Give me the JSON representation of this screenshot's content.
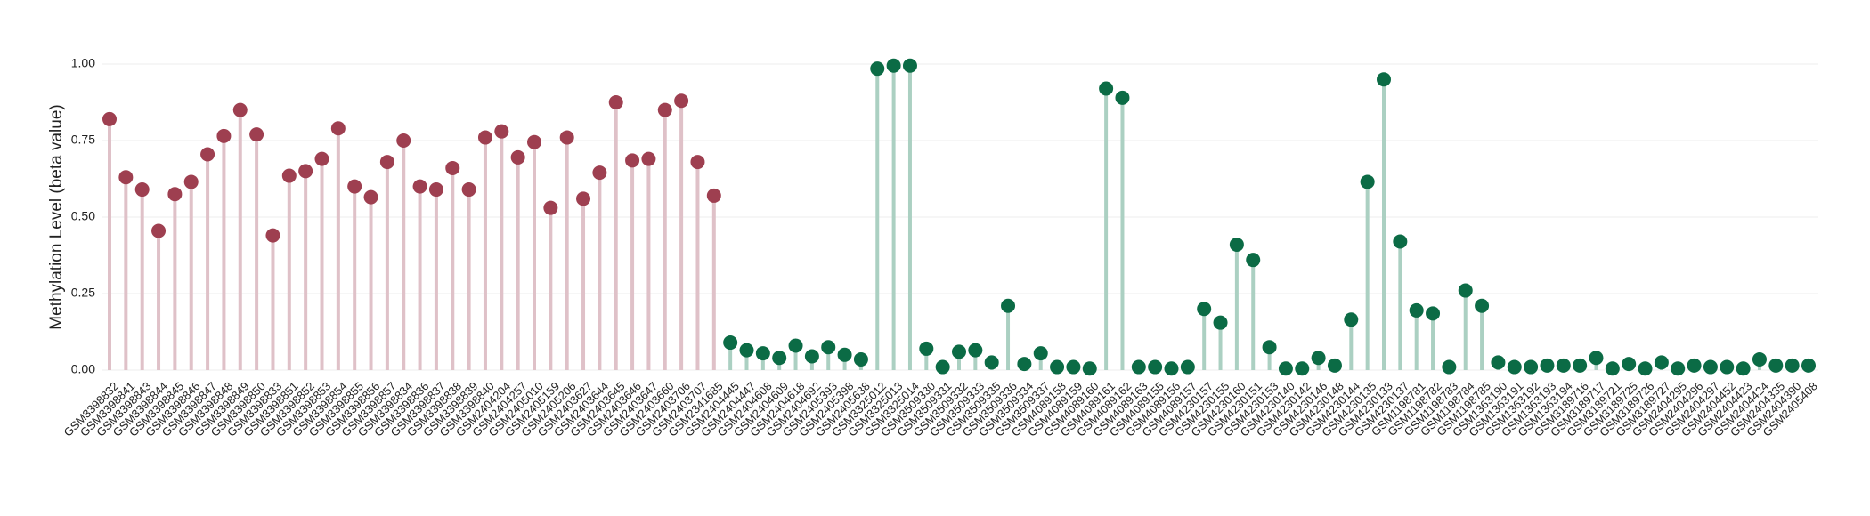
{
  "chart_data": {
    "type": "lollipop",
    "y_label": "Methylation Level (beta value)",
    "categories": [
      "GSM3398832",
      "GSM3398841",
      "GSM3398843",
      "GSM3398844",
      "GSM3398845",
      "GSM3398846",
      "GSM3398847",
      "GSM3398848",
      "GSM3398849",
      "GSM3398850",
      "GSM3398833",
      "GSM3398851",
      "GSM3398852",
      "GSM3398853",
      "GSM3398854",
      "GSM3398855",
      "GSM3398856",
      "GSM3398857",
      "GSM3398834",
      "GSM3398836",
      "GSM3398837",
      "GSM3398838",
      "GSM3398839",
      "GSM3398840",
      "GSM2404204",
      "GSM2404257",
      "GSM2405010",
      "GSM2405159",
      "GSM2405206",
      "GSM2403627",
      "GSM2403644",
      "GSM2403645",
      "GSM2403646",
      "GSM2403647",
      "GSM2403660",
      "GSM2403706",
      "GSM2403707",
      "GSM2341685",
      "GSM2404445",
      "GSM2404447",
      "GSM2404608",
      "GSM2404609",
      "GSM2404618",
      "GSM2404692",
      "GSM2405393",
      "GSM2405398",
      "GSM2405638",
      "GSM3325012",
      "GSM3325013",
      "GSM3325014",
      "GSM3509330",
      "GSM3509331",
      "GSM3509332",
      "GSM3509333",
      "GSM3509335",
      "GSM3509336",
      "GSM3509334",
      "GSM3509337",
      "GSM4089158",
      "GSM4089159",
      "GSM4089160",
      "GSM4089161",
      "GSM4089162",
      "GSM4089163",
      "GSM4089155",
      "GSM4089156",
      "GSM4089157",
      "GSM4230157",
      "GSM4230155",
      "GSM4230160",
      "GSM4230151",
      "GSM4230153",
      "GSM4230140",
      "GSM4230142",
      "GSM4230146",
      "GSM4230148",
      "GSM4230144",
      "GSM4230135",
      "GSM4230133",
      "GSM4230137",
      "GSM1198781",
      "GSM1198782",
      "GSM1198783",
      "GSM1198784",
      "GSM1198785",
      "GSM1363190",
      "GSM1363191",
      "GSM1363192",
      "GSM1363193",
      "GSM1363194",
      "GSM3189716",
      "GSM3189717",
      "GSM3189721",
      "GSM3189725",
      "GSM3189726",
      "GSM3189727",
      "GSM2404295",
      "GSM2404296",
      "GSM2404297",
      "GSM2404452",
      "GSM2404423",
      "GSM2404424",
      "GSM2404335",
      "GSM2404390",
      "GSM2405408"
    ],
    "series": [
      {
        "color": "#9e3f50",
        "stem_color": "#dfc1c8",
        "values": [
          0.82,
          0.63,
          0.59,
          0.455,
          0.575,
          0.615,
          0.705,
          0.765,
          0.85,
          0.77,
          0.44,
          0.635,
          0.65,
          0.69,
          0.79,
          0.6,
          0.565,
          0.68,
          0.75,
          0.6,
          0.59,
          0.66,
          0.59,
          0.76,
          0.78,
          0.695,
          0.745,
          0.53,
          0.76,
          0.56,
          0.645,
          0.875,
          0.685,
          0.69,
          0.85,
          0.88,
          0.68,
          0.57,
          null,
          null,
          null,
          null,
          null,
          null,
          null,
          null,
          null,
          null,
          null,
          null,
          null,
          null,
          null,
          null,
          null,
          null,
          null,
          null,
          null,
          null,
          null,
          null,
          null,
          null,
          null,
          null,
          null,
          null,
          null,
          null,
          null,
          null,
          null,
          null,
          null,
          null,
          null,
          null,
          null,
          null,
          null,
          null,
          null,
          null,
          null,
          null,
          null,
          null,
          null,
          null,
          null,
          null,
          null,
          null,
          null,
          null,
          null,
          null,
          null,
          null,
          null,
          null,
          null,
          null,
          null
        ]
      },
      {
        "color": "#0b6b45",
        "stem_color": "#abd0c2",
        "values": [
          null,
          null,
          null,
          null,
          null,
          null,
          null,
          null,
          null,
          null,
          null,
          null,
          null,
          null,
          null,
          null,
          null,
          null,
          null,
          null,
          null,
          null,
          null,
          null,
          null,
          null,
          null,
          null,
          null,
          null,
          null,
          null,
          null,
          null,
          null,
          null,
          null,
          null,
          0.09,
          0.065,
          0.055,
          0.04,
          0.08,
          0.045,
          0.075,
          0.05,
          0.035,
          0.985,
          0.995,
          0.995,
          0.07,
          0.01,
          0.06,
          0.065,
          0.025,
          0.21,
          0.02,
          0.055,
          0.01,
          0.01,
          0.005,
          0.92,
          0.89,
          0.01,
          0.01,
          0.005,
          0.01,
          0.2,
          0.155,
          0.41,
          0.36,
          0.075,
          0.005,
          0.005,
          0.04,
          0.015,
          0.165,
          0.615,
          0.95,
          0.42,
          0.195,
          0.185,
          0.01,
          0.26,
          0.21,
          0.025,
          0.01,
          0.01,
          0.015,
          0.015,
          0.015,
          0.04,
          0.005,
          0.02,
          0.005,
          0.025,
          0.005,
          0.015,
          0.01,
          0.01,
          0.005,
          0.035,
          0.015,
          0.015,
          0.015
        ]
      }
    ],
    "ylim": [
      0,
      1
    ],
    "yticks": [
      {
        "value": 0,
        "label": "0.00"
      },
      {
        "value": 0.25,
        "label": "0.25"
      },
      {
        "value": 0.5,
        "label": "0.50"
      },
      {
        "value": 0.75,
        "label": "0.75"
      },
      {
        "value": 1,
        "label": "1.00"
      }
    ],
    "grid": true
  }
}
